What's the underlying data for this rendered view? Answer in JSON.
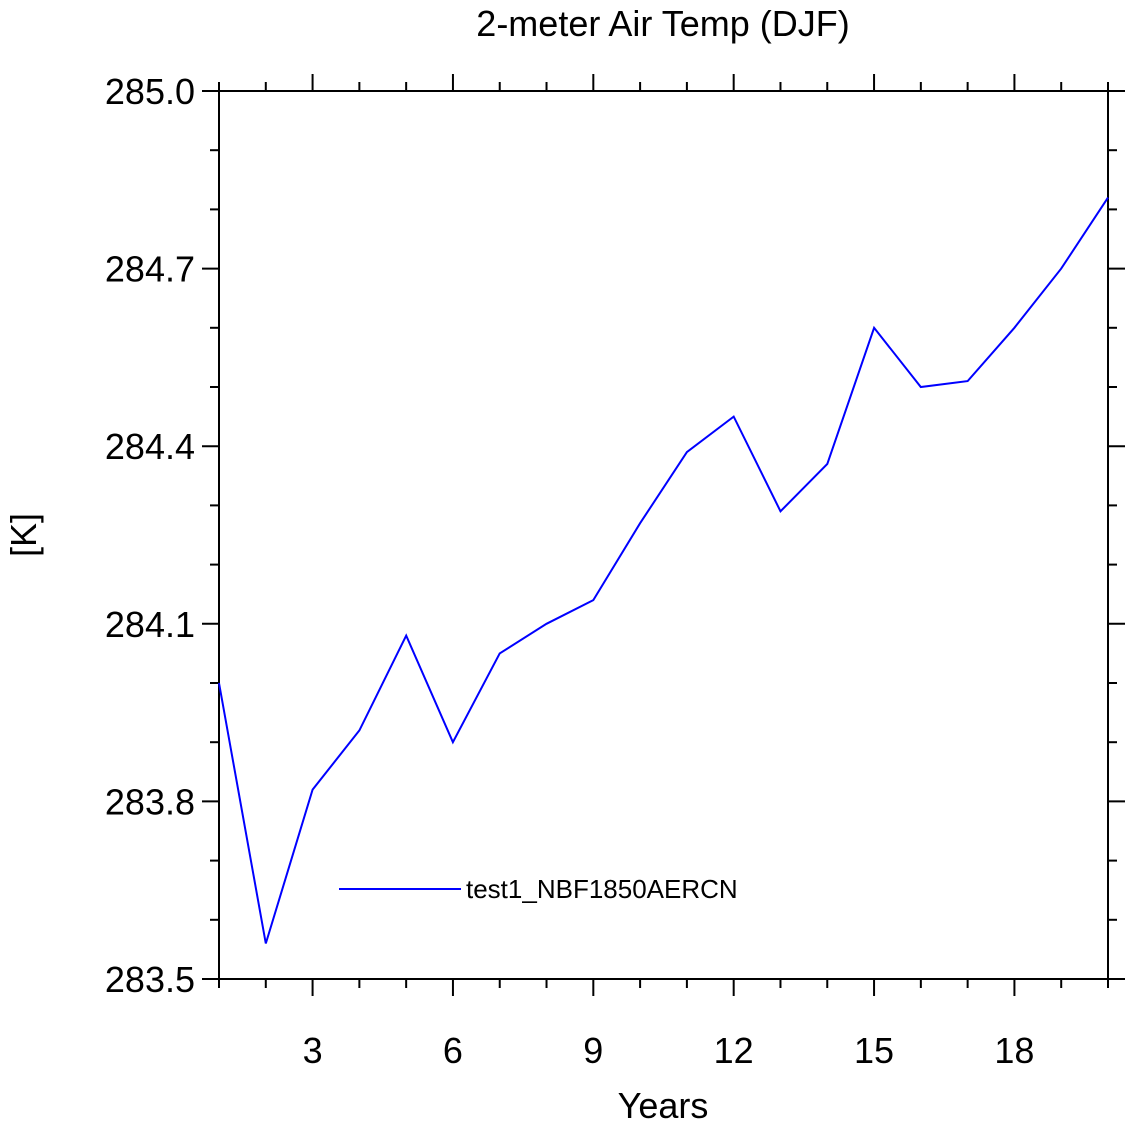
{
  "chart_data": {
    "type": "line",
    "title": "2-meter Air Temp (DJF)",
    "xlabel": "Years",
    "ylabel": "[K]",
    "xlim": [
      1,
      20
    ],
    "ylim": [
      283.5,
      285.0
    ],
    "x_ticks": [
      3,
      6,
      9,
      12,
      15,
      18
    ],
    "x_tick_labels": [
      "3",
      "6",
      "9",
      "12",
      "15",
      "18"
    ],
    "y_ticks": [
      283.5,
      283.8,
      284.1,
      284.4,
      284.7,
      285.0
    ],
    "y_tick_labels": [
      "283.5",
      "283.8",
      "284.1",
      "284.4",
      "284.7",
      "285.0"
    ],
    "grid": false,
    "legend_position": "bottom-left",
    "x": [
      1,
      2,
      3,
      4,
      5,
      6,
      7,
      8,
      9,
      10,
      11,
      12,
      13,
      14,
      15,
      16,
      17,
      18,
      19,
      20
    ],
    "series": [
      {
        "name": "test1_NBF1850AERCN",
        "color": "#0000ff",
        "values": [
          284.0,
          283.56,
          283.82,
          283.92,
          284.08,
          283.9,
          284.05,
          284.1,
          284.14,
          284.27,
          284.39,
          284.45,
          284.29,
          284.37,
          284.6,
          284.5,
          284.51,
          284.6,
          284.7,
          284.82
        ]
      }
    ]
  }
}
